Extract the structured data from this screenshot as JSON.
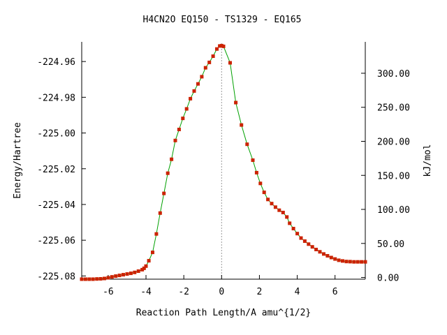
{
  "chart_data": {
    "type": "line",
    "title": "H4CN2O   EQ150 - TS1329 - EQ165",
    "xlabel": "Reaction Path Length/A amu^{1/2}",
    "ylabel": "Energy/Hartree",
    "y2label": "kJ/mol",
    "xlim": [
      -7.4,
      7.6
    ],
    "ylim": [
      -225.0818,
      -224.949
    ],
    "y2lim": [
      -2.5,
      346.1
    ],
    "x_ticks": [
      -6,
      -4,
      -2,
      0,
      2,
      4,
      6
    ],
    "x_tick_labels": [
      "-6",
      "-4",
      "-2",
      "0",
      "2",
      "4",
      "6"
    ],
    "y_ticks": [
      -224.96,
      -224.98,
      -225.0,
      -225.02,
      -225.04,
      -225.06,
      -225.08
    ],
    "y_tick_labels": [
      "-224.96",
      "-224.98",
      "-225.00",
      "-225.02",
      "-225.04",
      "-225.06",
      "-225.08"
    ],
    "y2_ticks": [
      0,
      50,
      100,
      150,
      200,
      250,
      300
    ],
    "y2_tick_labels": [
      "0.00",
      "50.00",
      "100.00",
      "150.00",
      "200.00",
      "250.00",
      "300.00"
    ],
    "grid": false,
    "vertical_reference_x": 0,
    "colors": {
      "line": "#00a000",
      "marker": "#cc2200",
      "reference": "#9a9a9a"
    },
    "series": [
      {
        "x": [
          -7.4,
          -7.2,
          -7.0,
          -6.8,
          -6.6,
          -6.4,
          -6.2,
          -6.0,
          -5.8,
          -5.6,
          -5.4,
          -5.2,
          -5.0,
          -4.8,
          -4.6,
          -4.4,
          -4.2,
          -4.1,
          -4.0,
          -3.85,
          -3.65,
          -3.45,
          -3.25,
          -3.05,
          -2.85,
          -2.65,
          -2.45,
          -2.25,
          -2.05,
          -1.85,
          -1.65,
          -1.45,
          -1.25,
          -1.05,
          -0.85,
          -0.65,
          -0.45,
          -0.25,
          -0.1,
          0.0,
          0.1,
          0.45,
          0.75,
          1.05,
          1.35,
          1.65,
          1.85,
          2.05,
          2.25,
          2.45,
          2.65,
          2.85,
          3.05,
          3.25,
          3.45,
          3.6,
          3.8,
          4.0,
          4.2,
          4.4,
          4.6,
          4.8,
          5.0,
          5.2,
          5.4,
          5.6,
          5.8,
          6.0,
          6.2,
          6.4,
          6.6,
          6.8,
          7.0,
          7.2,
          7.4,
          7.6
        ],
        "y": [
          -225.0818,
          -225.0818,
          -225.0818,
          -225.0818,
          -225.0817,
          -225.0816,
          -225.0814,
          -225.081,
          -225.0805,
          -225.0801,
          -225.0797,
          -225.0793,
          -225.0789,
          -225.0785,
          -225.078,
          -225.0773,
          -225.0765,
          -225.0757,
          -225.0745,
          -225.0715,
          -225.0668,
          -225.0565,
          -225.0448,
          -225.0338,
          -225.0225,
          -225.0147,
          -225.0042,
          -224.998,
          -224.9918,
          -224.9865,
          -224.9808,
          -224.9765,
          -224.9725,
          -224.9685,
          -224.9635,
          -224.9605,
          -224.957,
          -224.953,
          -224.9513,
          -224.9511,
          -224.9515,
          -224.9607,
          -224.983,
          -224.9955,
          -225.0063,
          -225.0152,
          -225.0222,
          -225.0282,
          -225.0332,
          -225.0372,
          -225.0395,
          -225.0415,
          -225.0432,
          -225.0445,
          -225.047,
          -225.0505,
          -225.0535,
          -225.0563,
          -225.0588,
          -225.0605,
          -225.0622,
          -225.0637,
          -225.0652,
          -225.0665,
          -225.0677,
          -225.0687,
          -225.0697,
          -225.0705,
          -225.0712,
          -225.0716,
          -225.0719,
          -225.072,
          -225.0721,
          -225.0721,
          -225.0721,
          -225.0721
        ]
      }
    ]
  }
}
